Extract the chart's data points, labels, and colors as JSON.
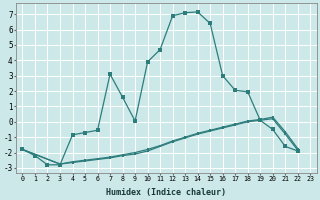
{
  "xlabel": "Humidex (Indice chaleur)",
  "xlim": [
    -0.5,
    23.5
  ],
  "ylim": [
    -3.3,
    7.7
  ],
  "yticks": [
    -3,
    -2,
    -1,
    0,
    1,
    2,
    3,
    4,
    5,
    6,
    7
  ],
  "xticks": [
    0,
    1,
    2,
    3,
    4,
    5,
    6,
    7,
    8,
    9,
    10,
    11,
    12,
    13,
    14,
    15,
    16,
    17,
    18,
    19,
    20,
    21,
    22,
    23
  ],
  "background_color": "#cce8e8",
  "grid_color": "#ffffff",
  "line_color": "#2e7d7d",
  "line1_x": [
    0,
    1,
    2,
    3,
    4,
    5,
    6,
    7,
    8,
    9,
    10,
    11,
    12,
    13,
    14,
    15,
    16,
    17,
    18,
    19,
    20,
    21,
    22
  ],
  "line1_y": [
    -1.8,
    -2.2,
    -2.8,
    -2.8,
    -0.85,
    -0.7,
    -0.55,
    3.1,
    1.6,
    0.05,
    3.9,
    4.7,
    6.9,
    7.1,
    7.15,
    6.4,
    3.0,
    2.05,
    1.95,
    0.1,
    -0.5,
    -1.6,
    -1.9
  ],
  "line2_x": [
    0,
    3,
    4,
    5,
    6,
    7,
    8,
    9,
    10,
    11,
    12,
    13,
    14,
    15,
    16,
    17,
    18,
    19,
    20,
    21,
    22
  ],
  "line2_y": [
    -1.8,
    -2.75,
    -2.65,
    -2.55,
    -2.45,
    -2.35,
    -2.2,
    -2.1,
    -1.9,
    -1.6,
    -1.3,
    -1.05,
    -0.8,
    -0.6,
    -0.4,
    -0.2,
    0.0,
    0.1,
    0.2,
    -0.8,
    -1.85
  ],
  "line3_x": [
    0,
    3,
    4,
    5,
    6,
    7,
    8,
    9,
    10,
    11,
    12,
    13,
    14,
    15,
    16,
    17,
    18,
    19,
    20,
    21,
    22
  ],
  "line3_y": [
    -1.8,
    -2.75,
    -2.6,
    -2.5,
    -2.4,
    -2.3,
    -2.15,
    -2.0,
    -1.8,
    -1.55,
    -1.25,
    -1.0,
    -0.75,
    -0.55,
    -0.35,
    -0.15,
    0.05,
    0.15,
    0.3,
    -0.65,
    -1.75
  ]
}
